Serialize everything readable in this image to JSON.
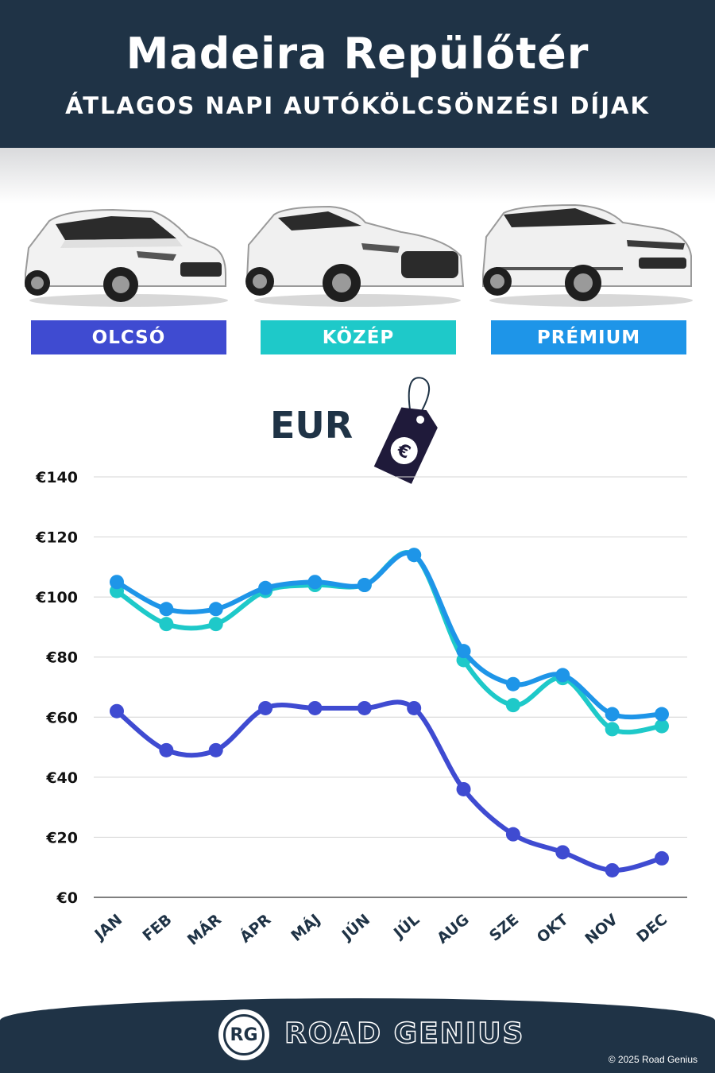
{
  "header": {
    "title": "Madeira Repülőtér",
    "subtitle": "ÁTLAGOS NAPI AUTÓKÖLCSÖNZÉSI DÍJAK"
  },
  "categories": [
    {
      "label": "OLCSÓ",
      "color": "#3f4bd1",
      "car_icon": "hatchback-car-icon"
    },
    {
      "label": "KÖZÉP",
      "color": "#1ec9c9",
      "car_icon": "compact-suv-car-icon"
    },
    {
      "label": "PRÉMIUM",
      "color": "#1e95e8",
      "car_icon": "premium-suv-car-icon"
    }
  ],
  "currency": {
    "label": "EUR",
    "tag_symbol": "€"
  },
  "chart_data": {
    "type": "line",
    "categories": [
      "JAN",
      "FEB",
      "MÁR",
      "ÁPR",
      "MÁJ",
      "JÚN",
      "JÚL",
      "AUG",
      "SZE",
      "OKT",
      "NOV",
      "DEC"
    ],
    "series": [
      {
        "name": "OLCSÓ",
        "color": "#3f4bd1",
        "values": [
          62,
          49,
          49,
          63,
          63,
          63,
          63,
          36,
          21,
          15,
          9,
          13
        ]
      },
      {
        "name": "KÖZÉP",
        "color": "#1ec9c9",
        "values": [
          102,
          91,
          91,
          102,
          104,
          104,
          114,
          79,
          64,
          73,
          56,
          57
        ]
      },
      {
        "name": "PRÉMIUM",
        "color": "#1e95e8",
        "values": [
          105,
          96,
          96,
          103,
          105,
          104,
          114,
          82,
          71,
          74,
          61,
          61
        ]
      }
    ],
    "yticks": [
      "€0",
      "€20",
      "€40",
      "€60",
      "€80",
      "€100",
      "€120",
      "€140"
    ],
    "ylim": [
      0,
      140
    ],
    "grid": true
  },
  "footer": {
    "logo_text": "RG",
    "brand": "ROAD GENIUS",
    "copyright": "© 2025 Road Genius"
  }
}
